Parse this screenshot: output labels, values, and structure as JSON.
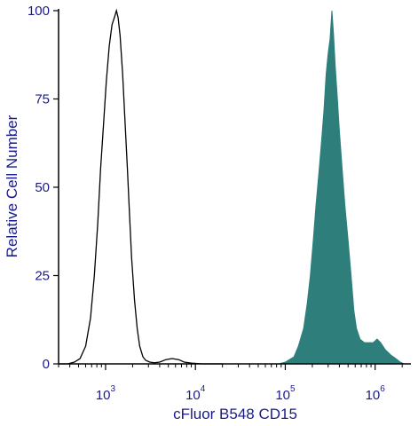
{
  "chart_data": {
    "type": "area",
    "title": "",
    "xlabel": "cFluor B548 CD15",
    "ylabel": "Relative Cell Number",
    "x_scale": "log",
    "xlim": [
      300,
      2500000
    ],
    "ylim": [
      0,
      100
    ],
    "y_ticks": [
      "0",
      "25",
      "50",
      "75",
      "100"
    ],
    "x_ticks": [
      {
        "value": 1000,
        "base": "10",
        "exp": "3"
      },
      {
        "value": 10000,
        "base": "10",
        "exp": "4"
      },
      {
        "value": 100000,
        "base": "10",
        "exp": "5"
      },
      {
        "value": 1000000,
        "base": "10",
        "exp": "6"
      }
    ],
    "grid": false,
    "series": [
      {
        "style": "outline",
        "color": "#000000",
        "points": [
          [
            300,
            0
          ],
          [
            380,
            0
          ],
          [
            450,
            0.5
          ],
          [
            520,
            1.5
          ],
          [
            600,
            5
          ],
          [
            680,
            13
          ],
          [
            750,
            25
          ],
          [
            820,
            40
          ],
          [
            880,
            55
          ],
          [
            950,
            68
          ],
          [
            1020,
            80
          ],
          [
            1100,
            90
          ],
          [
            1180,
            96
          ],
          [
            1250,
            98
          ],
          [
            1320,
            100
          ],
          [
            1380,
            98
          ],
          [
            1450,
            93
          ],
          [
            1550,
            82
          ],
          [
            1650,
            68
          ],
          [
            1750,
            55
          ],
          [
            1850,
            42
          ],
          [
            1950,
            30
          ],
          [
            2100,
            18
          ],
          [
            2250,
            10
          ],
          [
            2400,
            5
          ],
          [
            2600,
            2
          ],
          [
            2800,
            1
          ],
          [
            3100,
            0.5
          ],
          [
            3500,
            0.3
          ],
          [
            4000,
            0.5
          ],
          [
            4700,
            1.2
          ],
          [
            5500,
            1.5
          ],
          [
            6500,
            1.2
          ],
          [
            7500,
            0.5
          ],
          [
            9000,
            0.2
          ],
          [
            12000,
            0
          ],
          [
            20000,
            0
          ]
        ]
      },
      {
        "style": "filled",
        "color": "#2e7f7c",
        "points": [
          [
            85000,
            0
          ],
          [
            100000,
            0.5
          ],
          [
            125000,
            2
          ],
          [
            140000,
            5
          ],
          [
            160000,
            10
          ],
          [
            175000,
            17
          ],
          [
            190000,
            25
          ],
          [
            205000,
            35
          ],
          [
            220000,
            45
          ],
          [
            240000,
            56
          ],
          [
            255000,
            64
          ],
          [
            270000,
            72
          ],
          [
            285000,
            82
          ],
          [
            300000,
            88
          ],
          [
            315000,
            92
          ],
          [
            330000,
            100
          ],
          [
            345000,
            93
          ],
          [
            360000,
            84
          ],
          [
            380000,
            75
          ],
          [
            400000,
            66
          ],
          [
            430000,
            55
          ],
          [
            460000,
            45
          ],
          [
            500000,
            35
          ],
          [
            540000,
            25
          ],
          [
            580000,
            15
          ],
          [
            620000,
            10
          ],
          [
            680000,
            7
          ],
          [
            760000,
            6
          ],
          [
            850000,
            6
          ],
          [
            950000,
            6
          ],
          [
            1050000,
            7
          ],
          [
            1150000,
            6
          ],
          [
            1300000,
            4
          ],
          [
            1500000,
            2.5
          ],
          [
            1700000,
            1.5
          ],
          [
            1900000,
            0.5
          ],
          [
            2100000,
            0
          ]
        ]
      }
    ]
  }
}
